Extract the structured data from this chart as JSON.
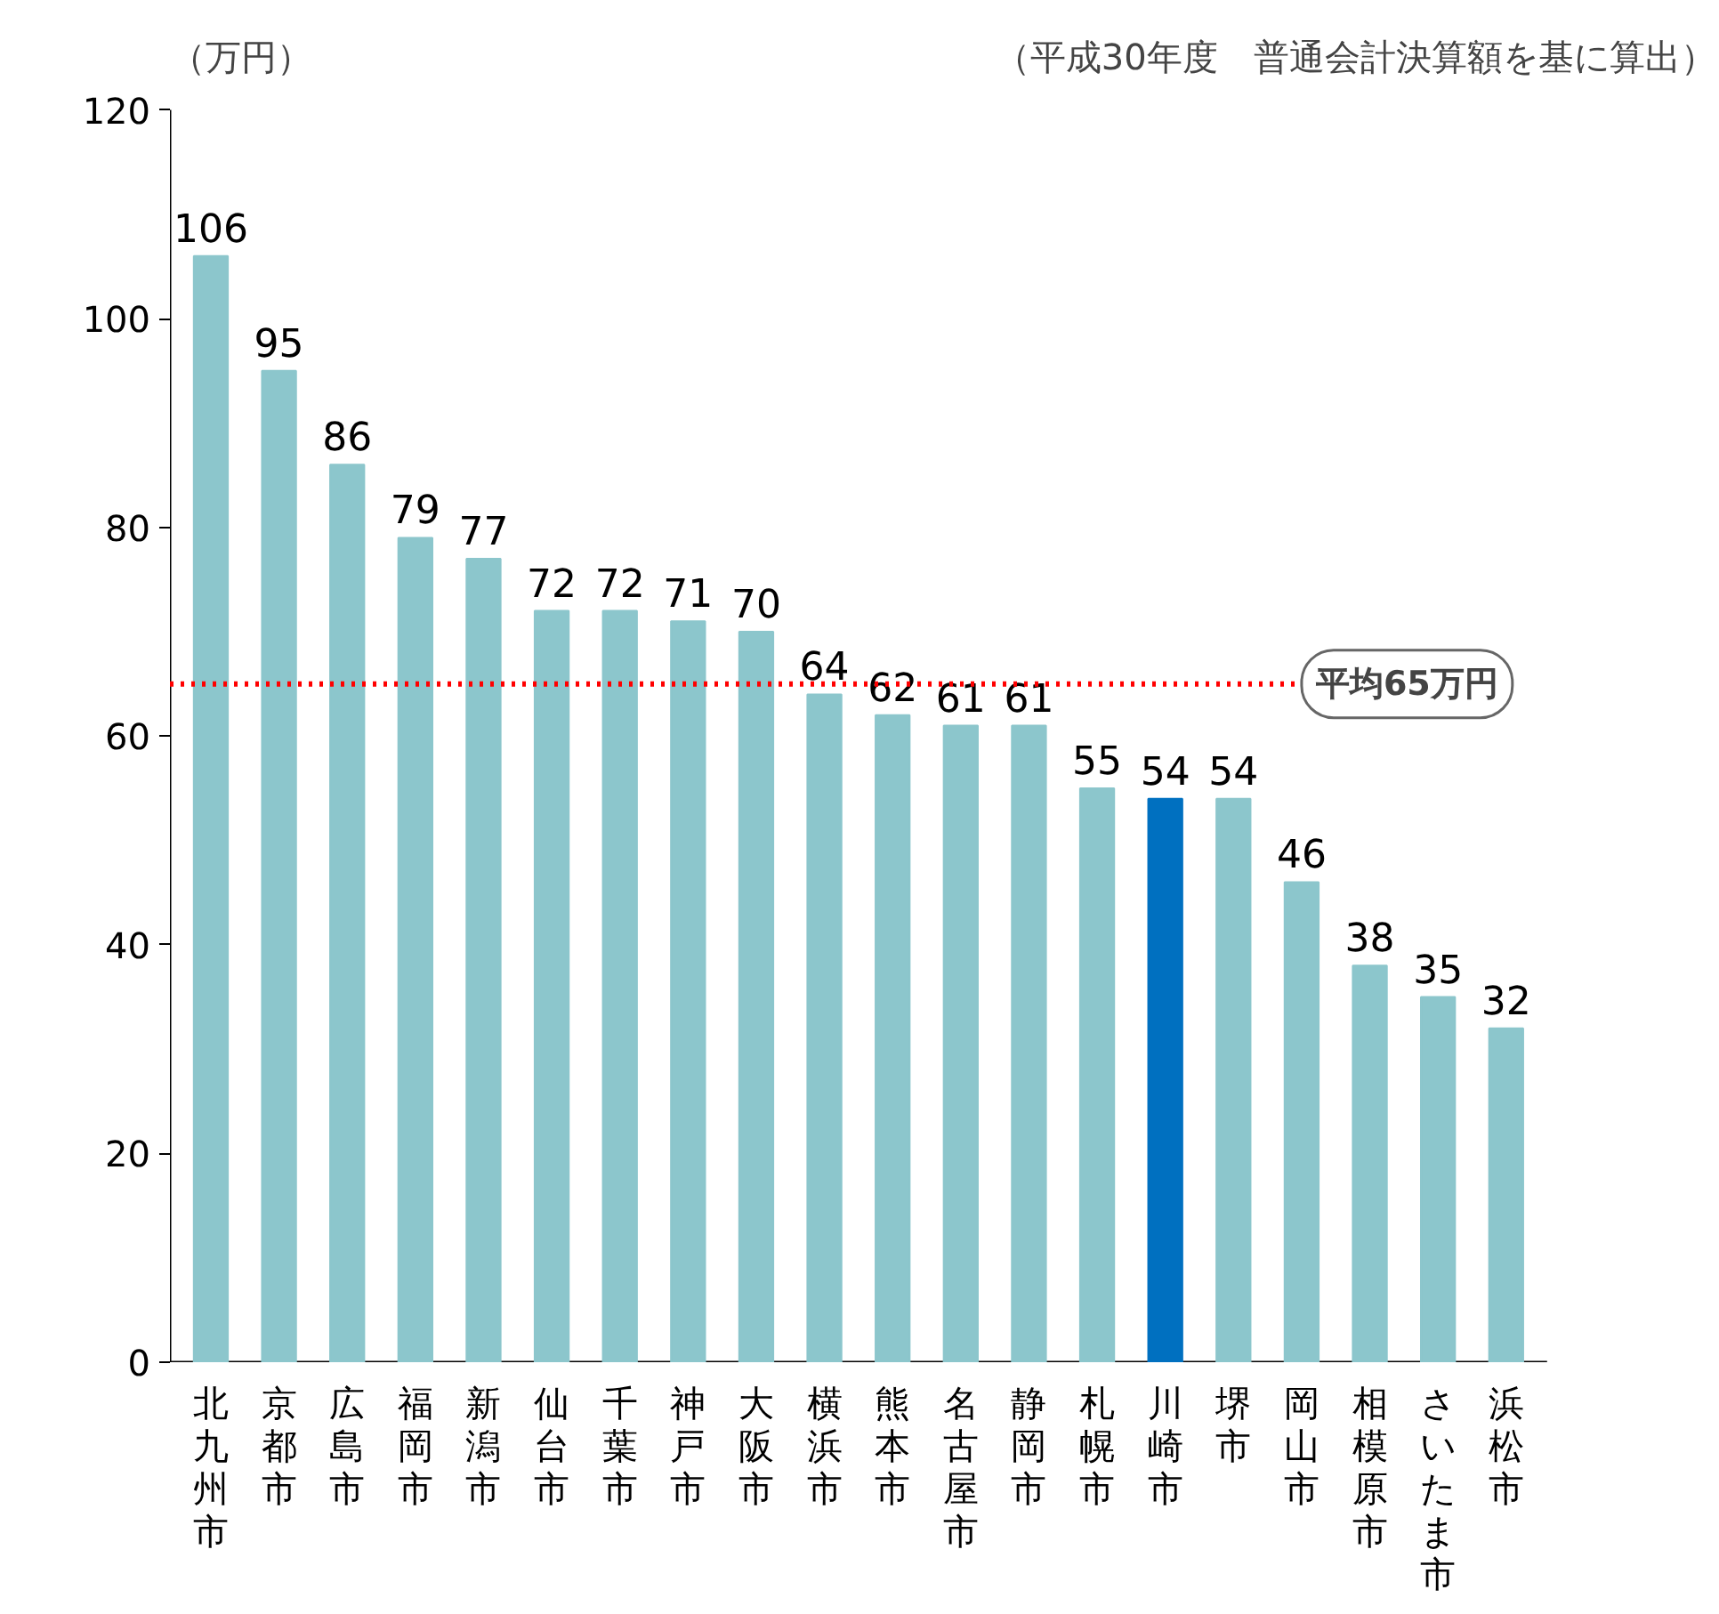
{
  "chart_data": {
    "type": "bar",
    "ylabel": "（万円）",
    "annotations": [
      "（平成30年度　普通会計決算額を基に算出）"
    ],
    "categories": [
      "北九州市",
      "京都市",
      "広島市",
      "福岡市",
      "新潟市",
      "仙台市",
      "千葉市",
      "神戸市",
      "大阪市",
      "横浜市",
      "熊本市",
      "名古屋市",
      "静岡市",
      "札幌市",
      "川崎市",
      "堺市",
      "岡山市",
      "相模原市",
      "さいたま市",
      "浜松市"
    ],
    "values": [
      106,
      95,
      86,
      79,
      77,
      72,
      72,
      71,
      70,
      64,
      62,
      61,
      61,
      55,
      54,
      54,
      46,
      38,
      35,
      32
    ],
    "colors": [
      "#8cc6cc",
      "#8cc6cc",
      "#8cc6cc",
      "#8cc6cc",
      "#8cc6cc",
      "#8cc6cc",
      "#8cc6cc",
      "#8cc6cc",
      "#8cc6cc",
      "#8cc6cc",
      "#8cc6cc",
      "#8cc6cc",
      "#8cc6cc",
      "#8cc6cc",
      "#0070c0",
      "#8cc6cc",
      "#8cc6cc",
      "#8cc6cc",
      "#8cc6cc",
      "#8cc6cc"
    ],
    "data_labels": true,
    "ylim": [
      0,
      120
    ],
    "yticks": [
      0,
      20,
      40,
      60,
      80,
      100,
      120
    ],
    "ref_lines": [
      {
        "axis": "y",
        "value": 65,
        "label": "平均65万円",
        "color": "#ff0000",
        "line_style": "dotted"
      }
    ]
  }
}
